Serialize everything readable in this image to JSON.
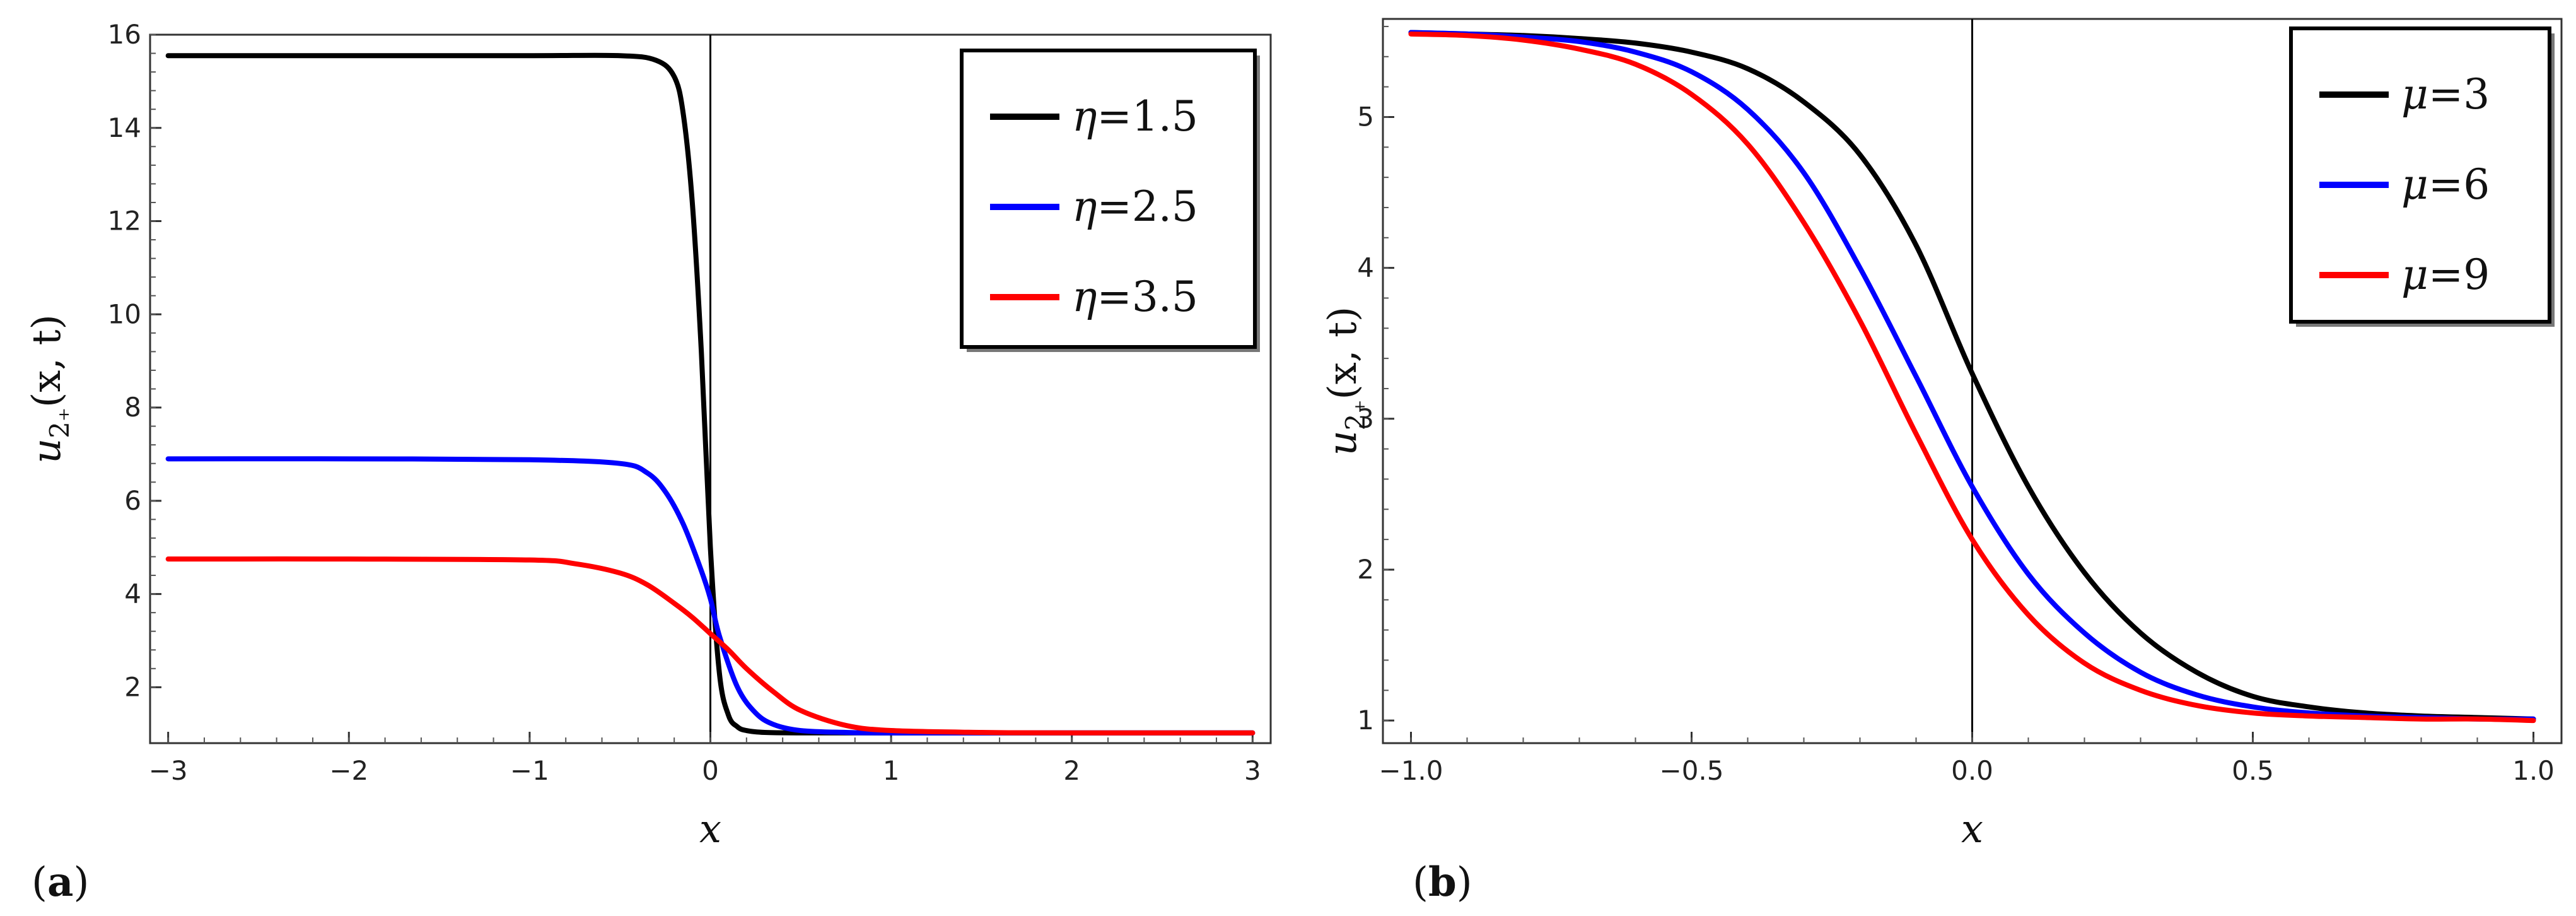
{
  "chart_data": [
    {
      "panel": "a",
      "panel_label": "(a)",
      "type": "line",
      "xlabel": "x",
      "ylabel": "u2₊(x, t)",
      "xlim": [
        -3.1,
        3.1
      ],
      "ylim": [
        0.8,
        16
      ],
      "xticks": [
        -3,
        -2,
        -1,
        0,
        1,
        2,
        3
      ],
      "xtick_labels": [
        "−3",
        "−2",
        "−1",
        "0",
        "1",
        "2",
        "3"
      ],
      "yticks": [
        2,
        4,
        6,
        8,
        10,
        12,
        14,
        16
      ],
      "ytick_labels": [
        "2",
        "4",
        "6",
        "8",
        "10",
        "12",
        "14",
        "16"
      ],
      "legend_position": "top-right",
      "series": [
        {
          "name": "η=1.5",
          "color": "#000000",
          "x": [
            -3.0,
            -2.0,
            -1.0,
            -0.5,
            -0.3,
            -0.2,
            -0.15,
            -0.1,
            -0.05,
            0.0,
            0.05,
            0.1,
            0.15,
            0.2,
            0.3,
            0.5,
            1.0,
            2.0,
            3.0
          ],
          "y": [
            15.55,
            15.55,
            15.55,
            15.55,
            15.45,
            15.1,
            14.3,
            12.4,
            9.2,
            5.0,
            2.3,
            1.4,
            1.15,
            1.07,
            1.03,
            1.02,
            1.02,
            1.02,
            1.02
          ]
        },
        {
          "name": "η=2.5",
          "color": "#0000ff",
          "x": [
            -3.0,
            -2.0,
            -1.0,
            -0.5,
            -0.35,
            -0.25,
            -0.15,
            -0.05,
            0.0,
            0.05,
            0.15,
            0.25,
            0.35,
            0.5,
            0.75,
            1.0,
            2.0,
            3.0
          ],
          "y": [
            6.9,
            6.9,
            6.88,
            6.8,
            6.6,
            6.2,
            5.5,
            4.5,
            3.9,
            3.1,
            2.0,
            1.45,
            1.2,
            1.07,
            1.03,
            1.02,
            1.02,
            1.02
          ]
        },
        {
          "name": "η=3.5",
          "color": "#ff0000",
          "x": [
            -3.0,
            -2.0,
            -1.0,
            -0.75,
            -0.5,
            -0.35,
            -0.2,
            -0.1,
            0.0,
            0.1,
            0.2,
            0.35,
            0.5,
            0.75,
            1.0,
            1.5,
            2.0,
            3.0
          ],
          "y": [
            4.75,
            4.75,
            4.73,
            4.65,
            4.45,
            4.2,
            3.8,
            3.5,
            3.15,
            2.8,
            2.4,
            1.9,
            1.5,
            1.18,
            1.07,
            1.03,
            1.02,
            1.02
          ]
        }
      ]
    },
    {
      "panel": "b",
      "panel_label": "(b)",
      "type": "line",
      "xlabel": "x",
      "ylabel": "u2₊(x, t)",
      "xlim": [
        -1.05,
        1.05
      ],
      "ylim": [
        0.85,
        5.65
      ],
      "xticks": [
        -1.0,
        -0.5,
        0.0,
        0.5,
        1.0
      ],
      "xtick_labels": [
        "−1.0",
        "−0.5",
        "0.0",
        "0.5",
        "1.0"
      ],
      "yticks": [
        1,
        2,
        3,
        4,
        5
      ],
      "ytick_labels": [
        "1",
        "2",
        "3",
        "4",
        "5"
      ],
      "legend_position": "top-right",
      "series": [
        {
          "name": "μ=3",
          "color": "#000000",
          "x": [
            -1.0,
            -0.9,
            -0.8,
            -0.7,
            -0.6,
            -0.5,
            -0.4,
            -0.3,
            -0.2,
            -0.1,
            0.0,
            0.1,
            0.2,
            0.3,
            0.4,
            0.5,
            0.6,
            0.7,
            0.8,
            0.9,
            1.0
          ],
          "y": [
            5.56,
            5.55,
            5.54,
            5.52,
            5.49,
            5.43,
            5.32,
            5.1,
            4.75,
            4.15,
            3.3,
            2.55,
            1.98,
            1.58,
            1.32,
            1.16,
            1.09,
            1.05,
            1.03,
            1.02,
            1.01
          ]
        },
        {
          "name": "μ=6",
          "color": "#0000ff",
          "x": [
            -1.0,
            -0.9,
            -0.8,
            -0.7,
            -0.6,
            -0.5,
            -0.4,
            -0.3,
            -0.2,
            -0.1,
            0.0,
            0.1,
            0.2,
            0.3,
            0.4,
            0.5,
            0.6,
            0.7,
            0.8,
            0.9,
            1.0
          ],
          "y": [
            5.56,
            5.55,
            5.53,
            5.5,
            5.43,
            5.3,
            5.05,
            4.63,
            4.0,
            3.28,
            2.55,
            1.97,
            1.58,
            1.32,
            1.17,
            1.09,
            1.05,
            1.03,
            1.02,
            1.01,
            1.01
          ]
        },
        {
          "name": "μ=9",
          "color": "#ff0000",
          "x": [
            -1.0,
            -0.9,
            -0.8,
            -0.7,
            -0.6,
            -0.5,
            -0.4,
            -0.3,
            -0.2,
            -0.1,
            0.0,
            0.1,
            0.2,
            0.3,
            0.4,
            0.5,
            0.6,
            0.7,
            0.8,
            0.9,
            1.0
          ],
          "y": [
            5.55,
            5.54,
            5.51,
            5.45,
            5.35,
            5.15,
            4.82,
            4.3,
            3.65,
            2.9,
            2.2,
            1.7,
            1.38,
            1.2,
            1.1,
            1.05,
            1.03,
            1.02,
            1.01,
            1.01,
            1.0
          ]
        }
      ]
    }
  ]
}
